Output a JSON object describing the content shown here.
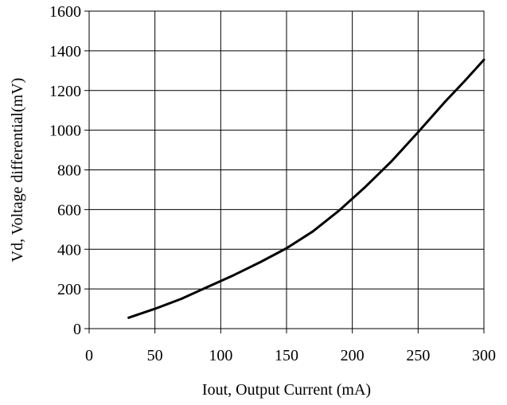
{
  "chart_data": {
    "type": "line",
    "title": "",
    "xlabel": "Iout, Output Current (mA)",
    "ylabel": "Vd, Voltage differential(mV)",
    "xlim": [
      0,
      300
    ],
    "ylim": [
      0,
      1600
    ],
    "xticks": [
      "0",
      "50",
      "100",
      "150",
      "200",
      "250",
      "300"
    ],
    "yticks": [
      "0",
      "200",
      "400",
      "600",
      "800",
      "1000",
      "1200",
      "1400",
      "1600"
    ],
    "grid": true,
    "legend": "none",
    "series": [
      {
        "x": [
          30,
          50,
          70,
          90,
          110,
          130,
          150,
          170,
          190,
          210,
          230,
          250,
          270,
          285,
          300
        ],
        "y": [
          55,
          100,
          150,
          210,
          270,
          335,
          405,
          490,
          595,
          715,
          845,
          990,
          1140,
          1245,
          1355
        ]
      }
    ],
    "colors": {
      "line": "#000000",
      "grid": "#000000"
    }
  }
}
